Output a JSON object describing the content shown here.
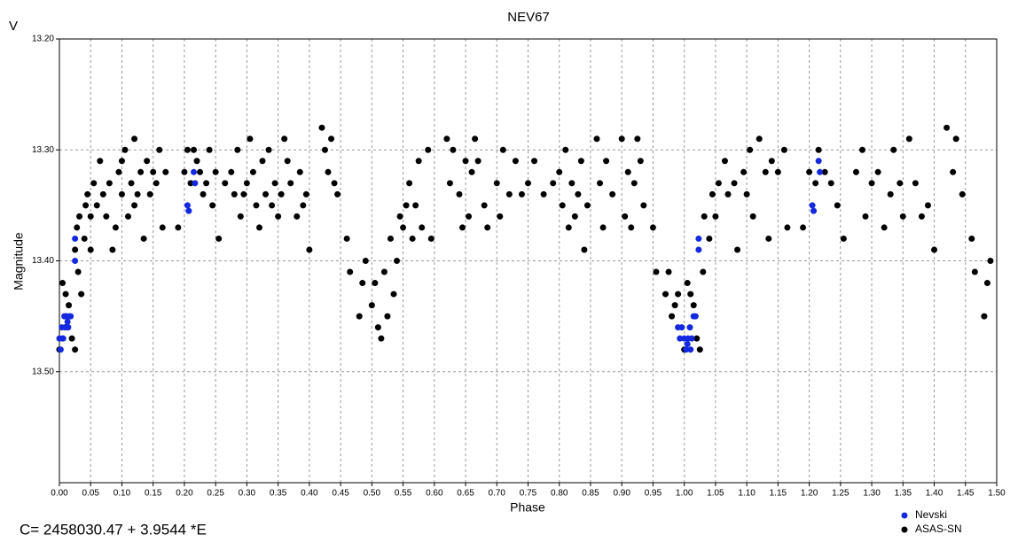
{
  "chart_data": {
    "type": "scatter",
    "title": "NEV67",
    "y_unit_label": "V",
    "x_label": "Phase",
    "y_label": "Magnitude",
    "annotation": "C= 2458030.47 + 3.9544 *E",
    "xlim": [
      0,
      1.5
    ],
    "ylim": [
      13.2,
      13.6
    ],
    "y_inverted": true,
    "grid": true,
    "legend": "bottom-right",
    "xticks": [
      {
        "value": 0,
        "label": "0.00"
      },
      {
        "value": 0.05,
        "label": "0.05"
      },
      {
        "value": 0.1,
        "label": "0.10"
      },
      {
        "value": 0.15,
        "label": "0.15"
      },
      {
        "value": 0.2,
        "label": "0.20"
      },
      {
        "value": 0.25,
        "label": "0.25"
      },
      {
        "value": 0.3,
        "label": "0.30"
      },
      {
        "value": 0.35,
        "label": "0.35"
      },
      {
        "value": 0.4,
        "label": "0.40"
      },
      {
        "value": 0.45,
        "label": "0.45"
      },
      {
        "value": 0.5,
        "label": "0.50"
      },
      {
        "value": 0.55,
        "label": "0.55"
      },
      {
        "value": 0.6,
        "label": "0.60"
      },
      {
        "value": 0.65,
        "label": "0.65"
      },
      {
        "value": 0.7,
        "label": "0.70"
      },
      {
        "value": 0.75,
        "label": "0.75"
      },
      {
        "value": 0.8,
        "label": "0.80"
      },
      {
        "value": 0.85,
        "label": "0.85"
      },
      {
        "value": 0.9,
        "label": "0.90"
      },
      {
        "value": 0.95,
        "label": "0.95"
      },
      {
        "value": 1,
        "label": "1.00"
      },
      {
        "value": 1.05,
        "label": "1.05"
      },
      {
        "value": 1.1,
        "label": "1.10"
      },
      {
        "value": 1.15,
        "label": "1.15"
      },
      {
        "value": 1.2,
        "label": "1.20"
      },
      {
        "value": 1.25,
        "label": "1.25"
      },
      {
        "value": 1.3,
        "label": "1.30"
      },
      {
        "value": 1.35,
        "label": "1.35"
      },
      {
        "value": 1.4,
        "label": "1.40"
      },
      {
        "value": 1.45,
        "label": "1.45"
      },
      {
        "value": 1.5,
        "label": "1.50"
      }
    ],
    "yticks": [
      {
        "value": 13.2,
        "label": "13.20"
      },
      {
        "value": 13.3,
        "label": "13.30"
      },
      {
        "value": 13.4,
        "label": "13.40"
      },
      {
        "value": 13.5,
        "label": "13.50"
      }
    ],
    "series": [
      {
        "name": "ASAS-SN",
        "color": "#000000",
        "x": [
          0,
          0.005,
          0.01,
          0.01,
          0.015,
          0.02,
          0.025,
          0.025,
          0.028,
          0.03,
          0.032,
          0.035,
          0.04,
          0.042,
          0.045,
          0.05,
          0.05,
          0.055,
          0.06,
          0.065,
          0.07,
          0.075,
          0.08,
          0.085,
          0.09,
          0.095,
          0.1,
          0.1,
          0.105,
          0.11,
          0.115,
          0.12,
          0.12,
          0.125,
          0.13,
          0.135,
          0.14,
          0.145,
          0.15,
          0.155,
          0.16,
          0.165,
          0.17,
          0.19,
          0.2,
          0.205,
          0.21,
          0.215,
          0.22,
          0.225,
          0.23,
          0.235,
          0.24,
          0.245,
          0.25,
          0.255,
          0.265,
          0.275,
          0.28,
          0.285,
          0.29,
          0.295,
          0.3,
          0.305,
          0.31,
          0.315,
          0.32,
          0.325,
          0.33,
          0.335,
          0.34,
          0.345,
          0.35,
          0.355,
          0.36,
          0.365,
          0.37,
          0.38,
          0.385,
          0.39,
          0.395,
          0.4,
          0.42,
          0.425,
          0.43,
          0.435,
          0.44,
          0.445,
          0.46,
          0.465,
          0.48,
          0.485,
          0.49,
          0.5,
          0.505,
          0.51,
          0.515,
          0.52,
          0.525,
          0.53,
          0.535,
          0.54,
          0.545,
          0.55,
          0.555,
          0.56,
          0.565,
          0.57,
          0.575,
          0.58,
          0.59,
          0.595,
          0.62,
          0.625,
          0.63,
          0.64,
          0.645,
          0.65,
          0.655,
          0.66,
          0.665,
          0.67,
          0.68,
          0.685,
          0.7,
          0.705,
          0.71,
          0.72,
          0.73,
          0.74,
          0.75,
          0.76,
          0.775,
          0.79,
          0.8,
          0.805,
          0.81,
          0.815,
          0.82,
          0.825,
          0.83,
          0.835,
          0.84,
          0.845,
          0.86,
          0.865,
          0.87,
          0.875,
          0.885,
          0.9,
          0.905,
          0.91,
          0.915,
          0.92,
          0.925,
          0.93,
          0.935,
          0.95,
          0.955,
          0.97,
          0.975,
          0.98,
          0.985,
          0.99,
          1,
          1.005,
          1.01,
          1.015,
          1.02,
          1.025,
          1.03,
          1.032,
          1.04,
          1.045,
          1.05,
          1.055,
          1.065,
          1.07,
          1.08,
          1.085,
          1.095,
          1.1,
          1.105,
          1.11,
          1.12,
          1.13,
          1.135,
          1.14,
          1.15,
          1.16,
          1.165,
          1.19,
          1.2,
          1.21,
          1.215,
          1.225,
          1.235,
          1.245,
          1.255,
          1.275,
          1.285,
          1.29,
          1.3,
          1.31,
          1.32,
          1.33,
          1.335,
          1.345,
          1.35,
          1.36,
          1.37,
          1.38,
          1.39,
          1.4,
          1.42,
          1.43,
          1.435,
          1.445,
          1.46,
          1.465,
          1.48,
          1.485,
          1.49
        ],
        "values": [
          13.48,
          13.42,
          13.43,
          13.45,
          13.44,
          13.47,
          13.48,
          13.39,
          13.37,
          13.41,
          13.36,
          13.43,
          13.38,
          13.35,
          13.34,
          13.36,
          13.39,
          13.33,
          13.35,
          13.31,
          13.34,
          13.36,
          13.33,
          13.39,
          13.37,
          13.32,
          13.34,
          13.31,
          13.3,
          13.36,
          13.33,
          13.35,
          13.29,
          13.34,
          13.32,
          13.38,
          13.31,
          13.34,
          13.32,
          13.33,
          13.3,
          13.37,
          13.32,
          13.37,
          13.32,
          13.3,
          13.33,
          13.3,
          13.31,
          13.32,
          13.34,
          13.33,
          13.3,
          13.35,
          13.32,
          13.38,
          13.33,
          13.32,
          13.34,
          13.3,
          13.36,
          13.34,
          13.33,
          13.29,
          13.32,
          13.35,
          13.37,
          13.31,
          13.34,
          13.3,
          13.35,
          13.33,
          13.36,
          13.34,
          13.29,
          13.31,
          13.33,
          13.36,
          13.32,
          13.35,
          13.34,
          13.39,
          13.28,
          13.3,
          13.32,
          13.29,
          13.33,
          13.34,
          13.38,
          13.41,
          13.45,
          13.42,
          13.4,
          13.44,
          13.42,
          13.46,
          13.47,
          13.41,
          13.45,
          13.38,
          13.43,
          13.4,
          13.36,
          13.37,
          13.35,
          13.33,
          13.38,
          13.35,
          13.31,
          13.37,
          13.3,
          13.38,
          13.29,
          13.33,
          13.3,
          13.34,
          13.37,
          13.31,
          13.36,
          13.32,
          13.29,
          13.31,
          13.35,
          13.37,
          13.33,
          13.36,
          13.3,
          13.34,
          13.31,
          13.34,
          13.33,
          13.31,
          13.34,
          13.33,
          13.32,
          13.35,
          13.3,
          13.37,
          13.33,
          13.36,
          13.34,
          13.31,
          13.39,
          13.35,
          13.29,
          13.33,
          13.37,
          13.31,
          13.34,
          13.29,
          13.36,
          13.32,
          13.37,
          13.33,
          13.29,
          13.31,
          13.35,
          13.37,
          13.41,
          13.43,
          13.41,
          13.45,
          13.44,
          13.43,
          13.48,
          13.42,
          13.43,
          13.44,
          13.47,
          13.48,
          13.41,
          13.36,
          13.38,
          13.34,
          13.36,
          13.33,
          13.31,
          13.34,
          13.33,
          13.39,
          13.32,
          13.34,
          13.3,
          13.36,
          13.29,
          13.32,
          13.38,
          13.31,
          13.32,
          13.3,
          13.37,
          13.37,
          13.32,
          13.33,
          13.3,
          13.32,
          13.33,
          13.35,
          13.38,
          13.32,
          13.3,
          13.36,
          13.33,
          13.32,
          13.37,
          13.34,
          13.3,
          13.33,
          13.36,
          13.29,
          13.33,
          13.36,
          13.35,
          13.39,
          13.28,
          13.32,
          13.29,
          13.34,
          13.38,
          13.41,
          13.45,
          13.42,
          13.4
        ]
      },
      {
        "name": "Nevski",
        "color": "#1428e0",
        "x": [
          0,
          0.002,
          0.004,
          0.006,
          0.008,
          0.01,
          0.012,
          0.014,
          0.016,
          0.018,
          0.005,
          0.009,
          0.013,
          0.025,
          0.025,
          0.205,
          0.207,
          0.215,
          0.217,
          0.99,
          0.993,
          0.996,
          1,
          1.003,
          1.006,
          1.009,
          1.012,
          1.015,
          1.018,
          1.005,
          1.01,
          1.023,
          1.023,
          1.205,
          1.207,
          1.215,
          1.217
        ],
        "values": [
          13.47,
          13.48,
          13.46,
          13.47,
          13.45,
          13.46,
          13.45,
          13.46,
          13.45,
          13.45,
          13.47,
          13.46,
          13.455,
          13.38,
          13.4,
          13.35,
          13.355,
          13.32,
          13.33,
          13.46,
          13.47,
          13.46,
          13.47,
          13.48,
          13.47,
          13.46,
          13.47,
          13.45,
          13.45,
          13.475,
          13.48,
          13.38,
          13.39,
          13.35,
          13.355,
          13.31,
          13.32
        ]
      }
    ]
  }
}
